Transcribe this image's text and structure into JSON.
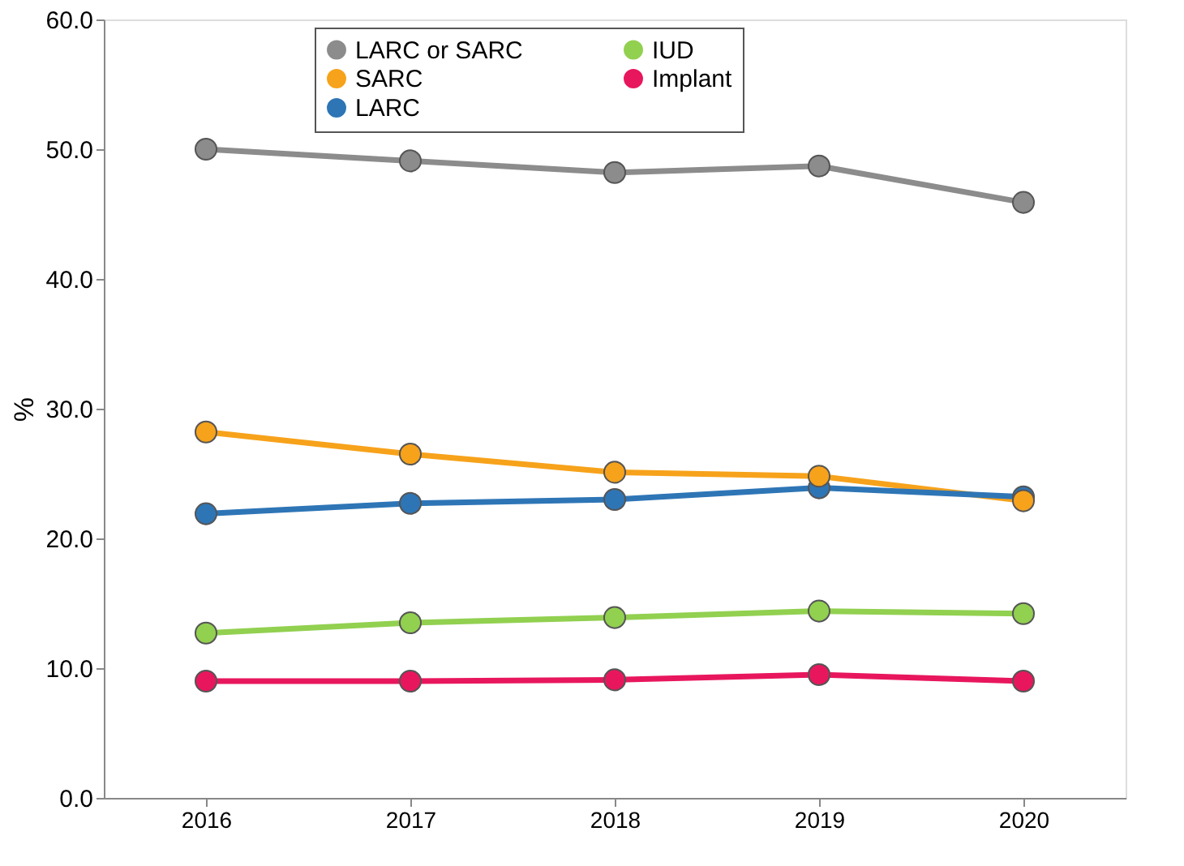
{
  "chart_data": {
    "type": "line",
    "ylabel": "%",
    "categories": [
      "2016",
      "2017",
      "2018",
      "2019",
      "2020"
    ],
    "series": [
      {
        "name": "LARC or SARC",
        "color": "#8c8c8c",
        "values": [
          50.0,
          49.1,
          48.2,
          48.7,
          45.9
        ]
      },
      {
        "name": "SARC",
        "color": "#f7a21b",
        "values": [
          28.2,
          26.5,
          25.1,
          24.8,
          22.9
        ]
      },
      {
        "name": "LARC",
        "color": "#2e75b6",
        "values": [
          21.9,
          22.7,
          23.0,
          23.9,
          23.2
        ]
      },
      {
        "name": "IUD",
        "color": "#92d050",
        "values": [
          12.7,
          13.5,
          13.9,
          14.4,
          14.2
        ]
      },
      {
        "name": "Implant",
        "color": "#e8175d",
        "values": [
          9.0,
          9.0,
          9.1,
          9.5,
          9.0
        ]
      }
    ],
    "ylim": [
      0,
      60
    ],
    "yticks": [
      {
        "value": 0,
        "label": "0.0"
      },
      {
        "value": 10,
        "label": "10.0"
      },
      {
        "value": 20,
        "label": "20.0"
      },
      {
        "value": 30,
        "label": "30.0"
      },
      {
        "value": 40,
        "label": "40.0"
      },
      {
        "value": 50,
        "label": "50.0"
      },
      {
        "value": 60,
        "label": "60.0"
      }
    ],
    "grid": false,
    "legend": "top",
    "marker": "circle",
    "line_style": "solid"
  }
}
